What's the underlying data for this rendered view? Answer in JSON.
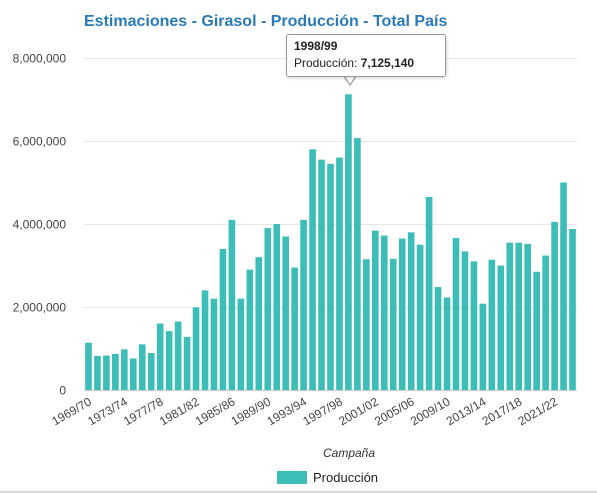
{
  "chart_data": {
    "type": "bar",
    "title": "Estimaciones - Girasol - Producción - Total País",
    "xlabel": "Campaña",
    "ylabel": "",
    "ylim": [
      0,
      8000000
    ],
    "yticks": [
      "0",
      "2,000,000",
      "4,000,000",
      "6,000,000",
      "8,000,000"
    ],
    "ytick_values": [
      0,
      2000000,
      4000000,
      6000000,
      8000000
    ],
    "grid": true,
    "legend_position": "bottom",
    "bar_color": "#3cbdb8",
    "categories": [
      "1969/70",
      "1970/71",
      "1971/72",
      "1972/73",
      "1973/74",
      "1974/75",
      "1975/76",
      "1976/77",
      "1977/78",
      "1978/79",
      "1979/80",
      "1980/81",
      "1981/82",
      "1982/83",
      "1983/84",
      "1984/85",
      "1985/86",
      "1986/87",
      "1987/88",
      "1988/89",
      "1989/90",
      "1990/91",
      "1991/92",
      "1992/93",
      "1993/94",
      "1994/95",
      "1995/96",
      "1996/97",
      "1997/98",
      "1998/99",
      "1999/00",
      "2000/01",
      "2001/02",
      "2002/03",
      "2003/04",
      "2004/05",
      "2005/06",
      "2006/07",
      "2007/08",
      "2008/09",
      "2009/10",
      "2010/11",
      "2011/12",
      "2012/13",
      "2013/14",
      "2014/15",
      "2015/16",
      "2016/17",
      "2017/18",
      "2018/19",
      "2019/20",
      "2020/21",
      "2021/22",
      "2022/23",
      "2023/24"
    ],
    "tick_labels": [
      "1969/70",
      "1973/74",
      "1977/78",
      "1981/82",
      "1985/86",
      "1989/90",
      "1993/94",
      "1997/98",
      "2001/02",
      "2005/06",
      "2009/10",
      "2013/14",
      "2017/18",
      "2021/22"
    ],
    "series": [
      {
        "name": "Producción",
        "values": [
          1140000,
          820000,
          830000,
          870000,
          980000,
          760000,
          1100000,
          890000,
          1600000,
          1420000,
          1650000,
          1280000,
          1990000,
          2400000,
          2200000,
          3400000,
          4100000,
          2200000,
          2900000,
          3200000,
          3900000,
          4000000,
          3700000,
          2950000,
          4100000,
          5800000,
          5550000,
          5450000,
          5600000,
          7125140,
          6070000,
          3150000,
          3840000,
          3720000,
          3160000,
          3650000,
          3800000,
          3500000,
          4650000,
          2480000,
          2230000,
          3660000,
          3340000,
          3100000,
          2080000,
          3140000,
          3000000,
          3550000,
          3550000,
          3520000,
          2850000,
          3240000,
          4050000,
          5000000,
          3880000
        ]
      }
    ],
    "tooltip": {
      "category": "1998/99",
      "series_label": "Producción: ",
      "value_text": "7,125,140"
    }
  }
}
